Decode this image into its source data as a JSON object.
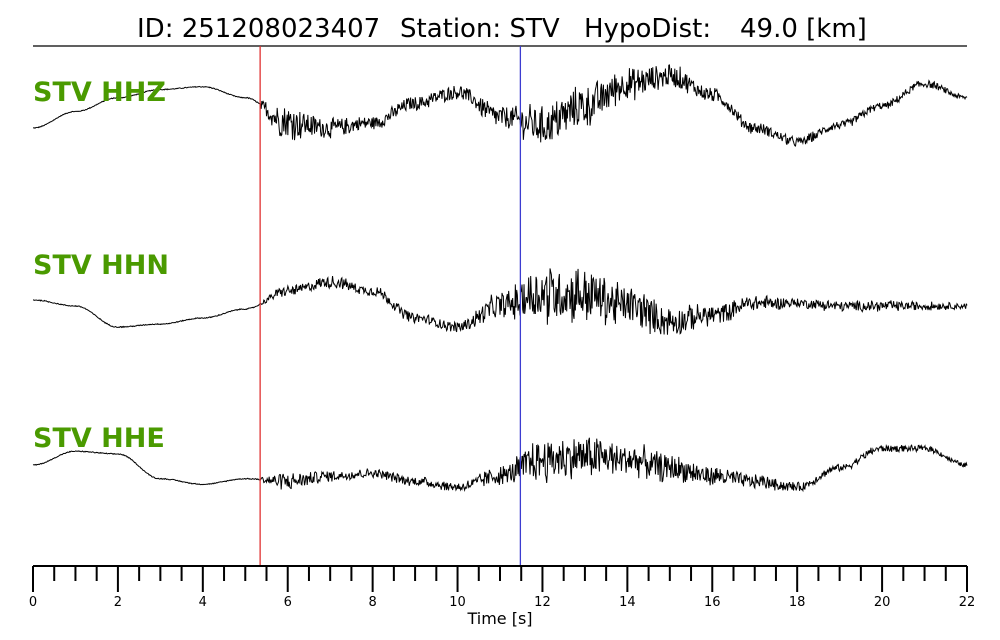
{
  "header": {
    "id_text": "ID: 251208023407",
    "station_text": "Station: STV",
    "hypodist_text": "HypoDist:",
    "hypodist_value": "49.0 [km]"
  },
  "colors": {
    "trace": "#000000",
    "label": "#4a9a00",
    "p_pick": "#e03030",
    "s_pick": "#3c3cd0"
  },
  "chart_data": {
    "type": "line",
    "xlabel": "Time [s]",
    "xlim": [
      0,
      22
    ],
    "major_ticks": [
      0,
      2,
      4,
      6,
      8,
      10,
      12,
      14,
      16,
      18,
      20,
      22
    ],
    "minor_tick_step": 0.5,
    "grid": false,
    "picks": {
      "p_time": 5.35,
      "s_time": 11.48
    },
    "series": [
      {
        "name": "STV HHZ",
        "x": [
          0,
          1,
          2,
          3,
          4,
          5,
          6,
          7,
          8,
          9,
          10,
          11,
          12,
          13,
          14,
          15,
          16,
          17,
          18,
          19,
          20,
          21,
          22
        ],
        "y": [
          0.0,
          0.3,
          0.55,
          0.7,
          0.75,
          0.55,
          0.1,
          0.0,
          0.1,
          0.45,
          0.65,
          0.2,
          0.05,
          0.4,
          0.8,
          0.95,
          0.6,
          0.0,
          -0.25,
          0.05,
          0.4,
          0.8,
          0.55
        ],
        "noise": [
          0.01,
          0.01,
          0.01,
          0.01,
          0.01,
          0.01,
          0.35,
          0.2,
          0.15,
          0.15,
          0.15,
          0.25,
          0.4,
          0.45,
          0.35,
          0.25,
          0.15,
          0.12,
          0.1,
          0.1,
          0.08,
          0.08,
          0.05
        ]
      },
      {
        "name": "STV HHN",
        "x": [
          0,
          1,
          2,
          3,
          4,
          5,
          6,
          7,
          8,
          9,
          10,
          11,
          12,
          13,
          14,
          15,
          16,
          17,
          18,
          19,
          20,
          21,
          22
        ],
        "y": [
          0.0,
          -0.1,
          -0.45,
          -0.4,
          -0.3,
          -0.15,
          0.15,
          0.3,
          0.15,
          -0.3,
          -0.45,
          -0.1,
          0.1,
          0.1,
          -0.1,
          -0.35,
          -0.25,
          -0.05,
          -0.05,
          -0.1,
          -0.1,
          -0.1,
          -0.1
        ],
        "noise": [
          0.01,
          0.01,
          0.01,
          0.01,
          0.01,
          0.01,
          0.1,
          0.12,
          0.1,
          0.1,
          0.1,
          0.25,
          0.55,
          0.55,
          0.4,
          0.3,
          0.2,
          0.15,
          0.1,
          0.1,
          0.1,
          0.08,
          0.06
        ]
      },
      {
        "name": "STV HHE",
        "x": [
          0,
          1,
          2,
          3,
          4,
          5,
          6,
          7,
          8,
          9,
          10,
          11,
          12,
          13,
          14,
          15,
          16,
          17,
          18,
          19,
          20,
          21,
          22
        ],
        "y": [
          0.0,
          0.25,
          0.2,
          -0.25,
          -0.35,
          -0.25,
          -0.3,
          -0.2,
          -0.15,
          -0.3,
          -0.4,
          -0.2,
          0.1,
          0.15,
          0.1,
          -0.05,
          -0.2,
          -0.3,
          -0.4,
          -0.05,
          0.3,
          0.3,
          0.0
        ],
        "noise": [
          0.01,
          0.01,
          0.01,
          0.01,
          0.01,
          0.01,
          0.18,
          0.12,
          0.1,
          0.1,
          0.1,
          0.2,
          0.45,
          0.45,
          0.35,
          0.3,
          0.2,
          0.15,
          0.1,
          0.08,
          0.08,
          0.06,
          0.05
        ]
      }
    ]
  }
}
